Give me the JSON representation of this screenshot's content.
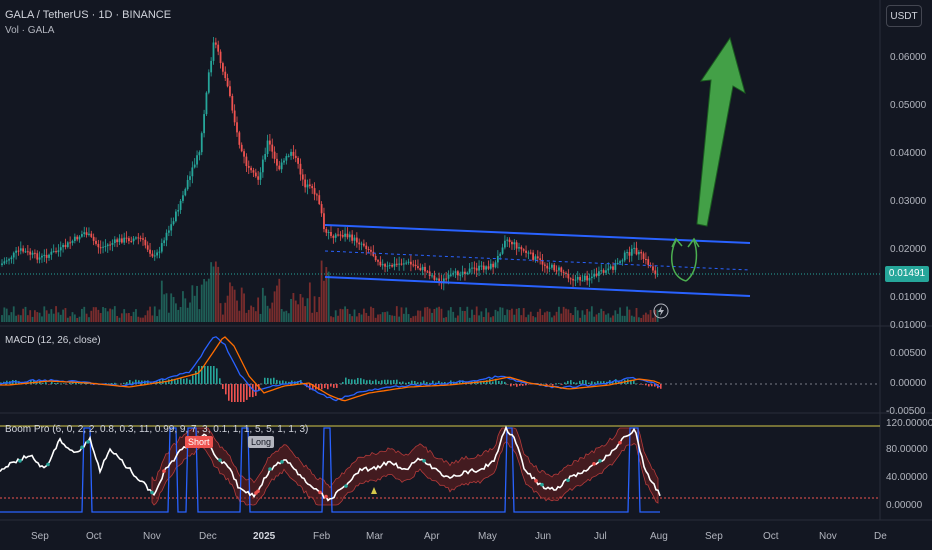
{
  "symbol": {
    "title": "GALA / TetherUS · 1D · BINANCE",
    "volume_label": "Vol · GALA",
    "currency_button": "USDT",
    "last_price": "0.01491"
  },
  "price_axis": {
    "labels": [
      "0.06000",
      "0.05000",
      "0.04000",
      "0.03000",
      "0.02000",
      "0.01000"
    ]
  },
  "macd": {
    "title": "MACD (12, 26, close)",
    "axis_labels": [
      "0.01000",
      "0.00500",
      "0.00000",
      "-0.00500"
    ]
  },
  "boom": {
    "title": "Boom Pro (6, 0, 2, 2, 0.8, 0.3, 11, 0.99, 9, 7, 3, 0.1, 1, 1, 5, 5, 1, 1, 3)",
    "axis_labels": [
      "120.00000",
      "80.00000",
      "40.00000",
      "0.00000"
    ],
    "short_label": "Short",
    "long_label": "Long"
  },
  "time_axis": {
    "labels": [
      "Sep",
      "Oct",
      "Nov",
      "Dec",
      "2025",
      "Feb",
      "Mar",
      "Apr",
      "May",
      "Jun",
      "Jul",
      "Aug",
      "Sep",
      "Oct",
      "Nov",
      "De"
    ]
  },
  "colors": {
    "background": "#131722",
    "up": "#26a69a",
    "down": "#ef5350",
    "channel": "#2962ff",
    "arrow": "#4caf50",
    "macd_line": "#2962ff",
    "signal_line": "#ff6d00",
    "osc_line": "#ffffff"
  },
  "icons": {
    "alert": "lightning-icon"
  }
}
